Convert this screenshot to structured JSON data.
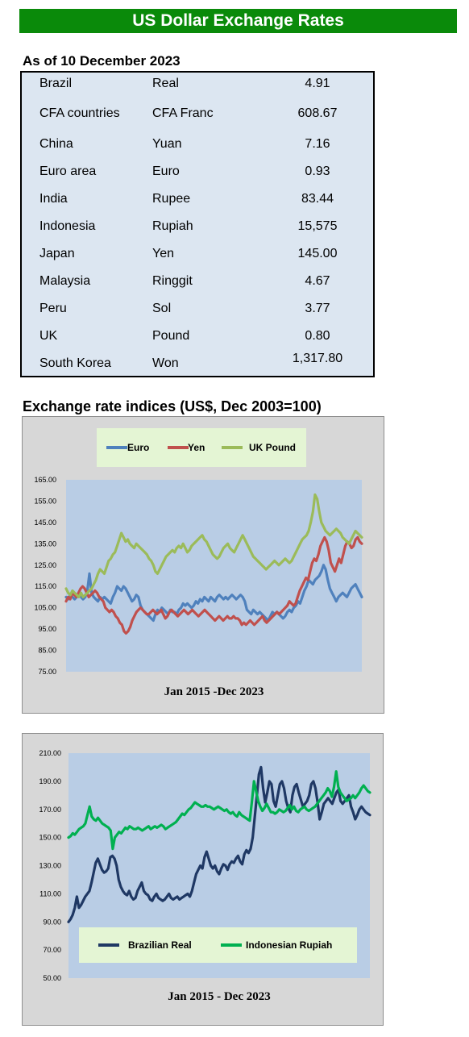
{
  "header": {
    "title": "US Dollar Exchange Rates"
  },
  "rates": {
    "as_of": "As of 10 December 2023",
    "rows": [
      {
        "country": "Brazil",
        "currency": "Real",
        "rate": "4.91"
      },
      {
        "country": "CFA countries",
        "currency": "CFA Franc",
        "rate": "608.67"
      },
      {
        "country": "China",
        "currency": "Yuan",
        "rate": "7.16"
      },
      {
        "country": "Euro area",
        "currency": "Euro",
        "rate": "0.93"
      },
      {
        "country": "India",
        "currency": "Rupee",
        "rate": "83.44"
      },
      {
        "country": "Indonesia",
        "currency": "Rupiah",
        "rate": "15,575"
      },
      {
        "country": "Japan",
        "currency": "Yen",
        "rate": "145.00"
      },
      {
        "country": "Malaysia",
        "currency": "Ringgit",
        "rate": "4.67"
      },
      {
        "country": "Peru",
        "currency": "Sol",
        "rate": "3.77"
      },
      {
        "country": "UK",
        "currency": "Pound",
        "rate": "0.80"
      },
      {
        "country": "South Korea",
        "currency": "Won",
        "rate": "1,317.80"
      }
    ]
  },
  "indices": {
    "title": "Exchange rate indices (US$, Dec 2003=100)"
  },
  "chart_data": [
    {
      "type": "line",
      "xlabel": "Jan 2015 -Dec 2023",
      "ylim": [
        75,
        165
      ],
      "yticks": [
        "165.00",
        "155.00",
        "145.00",
        "135.00",
        "125.00",
        "115.00",
        "105.00",
        "95.00",
        "85.00",
        "75.00"
      ],
      "grid": false,
      "legend": "top",
      "plot_color": "#b9cde5",
      "series": [
        {
          "name": "Euro",
          "color": "#4f81bd",
          "values": [
            110,
            109,
            111,
            110,
            109,
            110,
            112,
            110,
            109,
            110,
            113,
            121,
            112,
            110,
            109,
            108,
            110,
            109,
            110,
            109,
            108,
            107,
            110,
            112,
            115,
            114,
            113,
            115,
            114,
            112,
            110,
            108,
            109,
            111,
            110,
            106,
            104,
            103,
            102,
            101,
            100,
            99,
            102,
            104,
            103,
            105,
            104,
            103,
            102,
            104,
            103,
            103,
            102,
            104,
            105,
            107,
            106,
            107,
            106,
            105,
            106,
            108,
            107,
            109,
            108,
            110,
            109,
            108,
            110,
            109,
            108,
            110,
            111,
            110,
            109,
            110,
            109,
            110,
            111,
            110,
            109,
            110,
            111,
            110,
            108,
            104,
            103,
            102,
            104,
            103,
            102,
            103,
            102,
            101,
            100,
            99,
            101,
            103,
            102,
            103,
            102,
            101,
            100,
            101,
            103,
            104,
            103,
            105,
            106,
            108,
            107,
            110,
            113,
            115,
            118,
            117,
            116,
            118,
            119,
            120,
            122,
            125,
            123,
            118,
            114,
            112,
            110,
            108,
            110,
            111,
            112,
            111,
            110,
            112,
            114,
            115,
            116,
            114,
            112,
            110
          ]
        },
        {
          "name": "Yen",
          "color": "#c0504d",
          "values": [
            108,
            110,
            109,
            112,
            111,
            110,
            112,
            114,
            115,
            114,
            112,
            110,
            111,
            112,
            113,
            112,
            110,
            109,
            108,
            105,
            104,
            103,
            104,
            103,
            101,
            100,
            98,
            97,
            94,
            93,
            94,
            96,
            99,
            101,
            103,
            104,
            105,
            104,
            103,
            102,
            102,
            103,
            104,
            103,
            102,
            103,
            104,
            102,
            100,
            101,
            103,
            104,
            103,
            102,
            101,
            102,
            103,
            104,
            103,
            102,
            103,
            104,
            103,
            102,
            101,
            102,
            103,
            104,
            103,
            102,
            101,
            100,
            99,
            100,
            101,
            100,
            99,
            100,
            101,
            100,
            100,
            101,
            100,
            100,
            99,
            97,
            98,
            97,
            98,
            99,
            98,
            97,
            98,
            99,
            100,
            101,
            99,
            98,
            99,
            100,
            101,
            102,
            103,
            102,
            103,
            104,
            105,
            106,
            108,
            107,
            106,
            107,
            110,
            113,
            115,
            117,
            119,
            118,
            122,
            126,
            128,
            127,
            130,
            134,
            136,
            138,
            136,
            132,
            126,
            124,
            122,
            125,
            128,
            126,
            130,
            134,
            136,
            135,
            133,
            134,
            137,
            138,
            136,
            135
          ]
        },
        {
          "name": "UK Pound",
          "color": "#9bbb59",
          "values": [
            114,
            112,
            111,
            113,
            112,
            111,
            110,
            112,
            110,
            111,
            112,
            113,
            114,
            116,
            118,
            121,
            123,
            122,
            121,
            124,
            127,
            128,
            130,
            131,
            134,
            137,
            140,
            138,
            136,
            137,
            135,
            134,
            133,
            135,
            134,
            133,
            132,
            131,
            130,
            128,
            127,
            125,
            122,
            121,
            123,
            125,
            127,
            129,
            130,
            131,
            132,
            131,
            133,
            134,
            133,
            135,
            133,
            131,
            132,
            134,
            135,
            136,
            137,
            138,
            139,
            137,
            136,
            134,
            132,
            130,
            129,
            128,
            129,
            131,
            133,
            134,
            135,
            133,
            132,
            131,
            133,
            135,
            137,
            139,
            137,
            135,
            133,
            131,
            129,
            128,
            127,
            126,
            125,
            124,
            123,
            124,
            125,
            126,
            127,
            126,
            125,
            126,
            127,
            128,
            127,
            126,
            127,
            129,
            131,
            133,
            135,
            137,
            138,
            139,
            141,
            145,
            150,
            158,
            156,
            150,
            145,
            143,
            141,
            140,
            139,
            140,
            141,
            142,
            141,
            140,
            138,
            137,
            136,
            135,
            137,
            139,
            141,
            140,
            139,
            138
          ]
        }
      ]
    },
    {
      "type": "line",
      "xlabel": "Jan 2015 - Dec 2023",
      "ylim": [
        50,
        210
      ],
      "yticks": [
        "210.00",
        "190.00",
        "170.00",
        "150.00",
        "130.00",
        "110.00",
        "90.00",
        "70.00",
        "50.00"
      ],
      "grid": false,
      "legend": "bottom",
      "plot_color": "#b9cde5",
      "series": [
        {
          "name": "Brazilian Real",
          "color": "#1f3864",
          "values": [
            90,
            92,
            95,
            100,
            108,
            100,
            102,
            105,
            108,
            110,
            112,
            118,
            125,
            132,
            135,
            131,
            127,
            125,
            126,
            128,
            136,
            137,
            135,
            130,
            120,
            115,
            112,
            110,
            109,
            112,
            108,
            106,
            107,
            112,
            115,
            118,
            112,
            110,
            109,
            106,
            105,
            108,
            110,
            107,
            106,
            105,
            106,
            108,
            110,
            107,
            106,
            107,
            108,
            106,
            107,
            108,
            109,
            110,
            108,
            112,
            118,
            124,
            127,
            130,
            128,
            136,
            140,
            135,
            130,
            128,
            130,
            126,
            124,
            128,
            131,
            130,
            127,
            131,
            133,
            132,
            135,
            137,
            133,
            131,
            138,
            141,
            139,
            142,
            150,
            165,
            180,
            195,
            200,
            185,
            175,
            182,
            190,
            188,
            176,
            172,
            180,
            188,
            190,
            185,
            176,
            171,
            168,
            180,
            186,
            188,
            182,
            177,
            172,
            174,
            176,
            180,
            188,
            190,
            185,
            175,
            163,
            168,
            174,
            176,
            178,
            176,
            174,
            178,
            182,
            184,
            176,
            174,
            176,
            178,
            180,
            172,
            168,
            163,
            166,
            170,
            172,
            170,
            168,
            167,
            166
          ]
        },
        {
          "name": "Indonesian Rupiah",
          "color": "#00b050",
          "values": [
            150,
            151,
            153,
            152,
            154,
            156,
            157,
            158,
            160,
            166,
            172,
            165,
            163,
            162,
            164,
            162,
            160,
            159,
            158,
            157,
            155,
            142,
            150,
            152,
            154,
            153,
            155,
            157,
            156,
            158,
            157,
            156,
            156,
            157,
            156,
            155,
            156,
            157,
            158,
            156,
            157,
            158,
            157,
            158,
            159,
            158,
            156,
            157,
            158,
            159,
            160,
            161,
            163,
            165,
            167,
            166,
            168,
            170,
            171,
            173,
            175,
            174,
            173,
            172,
            172,
            173,
            172,
            172,
            171,
            170,
            171,
            172,
            171,
            170,
            169,
            170,
            168,
            167,
            168,
            166,
            165,
            168,
            166,
            165,
            164,
            163,
            162,
            175,
            190,
            183,
            176,
            172,
            169,
            171,
            174,
            171,
            168,
            168,
            167,
            168,
            170,
            169,
            168,
            169,
            171,
            173,
            170,
            172,
            169,
            168,
            170,
            171,
            172,
            170,
            169,
            170,
            171,
            172,
            174,
            176,
            178,
            180,
            182,
            185,
            183,
            179,
            186,
            197,
            186,
            182,
            180,
            178,
            176,
            177,
            178,
            180,
            178,
            180,
            182,
            185,
            187,
            185,
            183,
            182
          ]
        }
      ]
    }
  ]
}
